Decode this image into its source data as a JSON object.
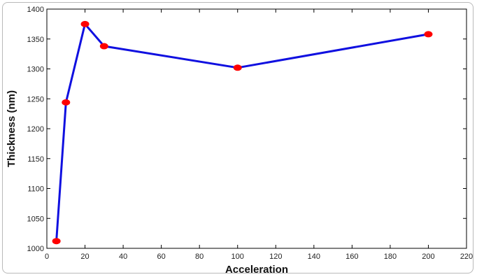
{
  "chart_data": {
    "type": "line",
    "title": "",
    "xlabel": "Acceleration",
    "ylabel": "Thickness (nm)",
    "xlim": [
      0,
      220
    ],
    "ylim": [
      1000,
      1400
    ],
    "xticks": [
      0,
      20,
      40,
      60,
      80,
      100,
      120,
      140,
      160,
      180,
      200,
      220
    ],
    "yticks": [
      1000,
      1050,
      1100,
      1150,
      1200,
      1250,
      1300,
      1350,
      1400
    ],
    "grid": false,
    "legend": "none",
    "series": [
      {
        "color": "#1010e0",
        "marker_color": "#ff0000",
        "x": [
          5,
          10,
          20,
          30,
          100,
          200
        ],
        "y": [
          1012,
          1244,
          1375,
          1338,
          1302,
          1358
        ]
      }
    ]
  }
}
